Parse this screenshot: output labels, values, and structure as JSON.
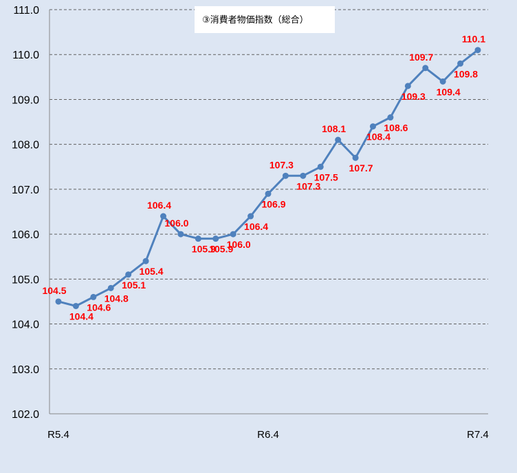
{
  "chart_data": {
    "type": "line",
    "title": "③消費者物価指数（総合）",
    "xlabel": "",
    "ylabel": "",
    "ylim": [
      102.0,
      111.0
    ],
    "y_ticks": [
      "111.0",
      "110.0",
      "109.0",
      "108.0",
      "107.0",
      "106.0",
      "105.0",
      "104.0",
      "103.0",
      "102.0"
    ],
    "x_ticks": [
      "R5.4",
      "R6.4",
      "R7.4"
    ],
    "grid": "horizontal-dashed",
    "colors": {
      "background": "#dde6f3",
      "line": "#4f81bd",
      "label": "#ff0000",
      "grid": "#606060"
    },
    "series": [
      {
        "values": [
          104.5,
          104.4,
          104.6,
          104.8,
          105.1,
          105.4,
          106.4,
          106.0,
          105.9,
          105.9,
          106.0,
          106.4,
          106.9,
          107.3,
          107.3,
          107.5,
          108.1,
          107.7,
          108.4,
          108.6,
          109.3,
          109.7,
          109.4,
          109.8,
          110.1
        ]
      }
    ],
    "data_labels": [
      "104.5",
      "104.4",
      "104.6",
      "104.8",
      "105.1",
      "105.4",
      "106.4",
      "106.0",
      "105.9",
      "105.9",
      "106.0",
      "106.4",
      "106.9",
      "107.3",
      "107.3",
      "107.5",
      "108.1",
      "107.7",
      "108.4",
      "108.6",
      "109.3",
      "109.7",
      "109.4",
      "109.8",
      "110.1"
    ]
  }
}
